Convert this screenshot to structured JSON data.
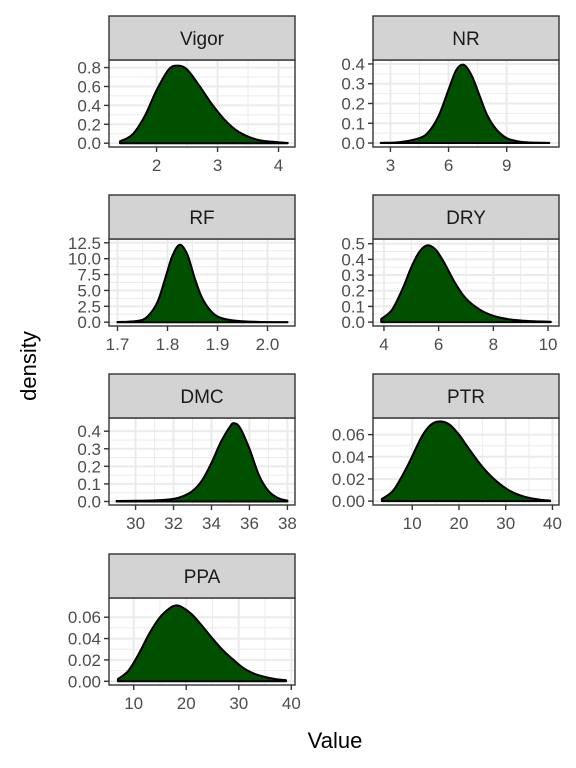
{
  "chart_data": {
    "type": "area",
    "xlabel": "Value",
    "ylabel": "density",
    "grid": true,
    "colors": {
      "fill": "#005000",
      "line": "#000000",
      "strip": "#d3d3d3",
      "panel_border": "#333333",
      "grid": "#ebebeb"
    },
    "panels": [
      {
        "name": "Vigor",
        "xlim": [
          1.22,
          4.27
        ],
        "ylim": [
          -0.04,
          0.88
        ],
        "xticks": [
          2,
          3,
          4
        ],
        "xtick_labels": [
          "2",
          "3",
          "4"
        ],
        "yticks": [
          0.0,
          0.2,
          0.4,
          0.6,
          0.8
        ],
        "ytick_labels": [
          "0.0",
          "0.2",
          "0.4",
          "0.6",
          "0.8"
        ],
        "curve": {
          "x": [
            1.4,
            1.6,
            1.8,
            2.0,
            2.2,
            2.35,
            2.5,
            2.7,
            2.9,
            3.1,
            3.3,
            3.5,
            3.7,
            3.9,
            4.1,
            4.15
          ],
          "y": [
            0.02,
            0.09,
            0.28,
            0.56,
            0.78,
            0.82,
            0.78,
            0.61,
            0.42,
            0.26,
            0.14,
            0.07,
            0.03,
            0.015,
            0.005,
            0.003
          ]
        }
      },
      {
        "name": "NR",
        "xlim": [
          2.1,
          11.7
        ],
        "ylim": [
          -0.02,
          0.42
        ],
        "xticks": [
          3,
          6,
          9
        ],
        "xtick_labels": [
          "3",
          "6",
          "9"
        ],
        "yticks": [
          0.0,
          0.1,
          0.2,
          0.3,
          0.4
        ],
        "ytick_labels": [
          "0.0",
          "0.1",
          "0.2",
          "0.3",
          "0.4"
        ],
        "curve": {
          "x": [
            2.5,
            3.5,
            4.5,
            5.0,
            5.5,
            6.0,
            6.4,
            6.8,
            7.2,
            7.6,
            8.0,
            8.5,
            9.0,
            9.5,
            10.0,
            10.5,
            11.2
          ],
          "y": [
            0.001,
            0.005,
            0.025,
            0.06,
            0.14,
            0.27,
            0.37,
            0.395,
            0.34,
            0.24,
            0.14,
            0.065,
            0.025,
            0.01,
            0.004,
            0.002,
            0.001
          ]
        }
      },
      {
        "name": "RF",
        "xlim": [
          1.683,
          2.055
        ],
        "ylim": [
          -0.6,
          13.1
        ],
        "xticks": [
          1.7,
          1.8,
          1.9,
          2.0
        ],
        "xtick_labels": [
          "1.7",
          "1.8",
          "1.9",
          "2.0"
        ],
        "yticks": [
          0.0,
          2.5,
          5.0,
          7.5,
          10.0,
          12.5
        ],
        "ytick_labels": [
          "0.0",
          "2.5",
          "5.0",
          "7.5",
          "10.0",
          "12.5"
        ],
        "curve": {
          "x": [
            1.7,
            1.74,
            1.76,
            1.78,
            1.795,
            1.81,
            1.825,
            1.84,
            1.855,
            1.87,
            1.89,
            1.91,
            1.94,
            1.98,
            2.04
          ],
          "y": [
            0.02,
            0.2,
            0.9,
            3.2,
            6.8,
            10.5,
            12.2,
            10.6,
            6.8,
            3.7,
            1.5,
            0.6,
            0.2,
            0.05,
            0.01
          ]
        }
      },
      {
        "name": "DRY",
        "xlim": [
          3.6,
          10.4
        ],
        "ylim": [
          -0.025,
          0.53
        ],
        "xticks": [
          4,
          6,
          8,
          10
        ],
        "xtick_labels": [
          "4",
          "6",
          "8",
          "10"
        ],
        "yticks": [
          0.0,
          0.1,
          0.2,
          0.3,
          0.4,
          0.5
        ],
        "ytick_labels": [
          "0.0",
          "0.1",
          "0.2",
          "0.3",
          "0.4",
          "0.5"
        ],
        "curve": {
          "x": [
            3.9,
            4.3,
            4.7,
            5.0,
            5.3,
            5.6,
            5.9,
            6.2,
            6.6,
            7.0,
            7.5,
            8.0,
            8.5,
            9.0,
            9.5,
            10.1
          ],
          "y": [
            0.02,
            0.08,
            0.22,
            0.35,
            0.45,
            0.49,
            0.46,
            0.38,
            0.25,
            0.15,
            0.08,
            0.04,
            0.02,
            0.01,
            0.005,
            0.002
          ]
        }
      },
      {
        "name": "DMC",
        "xlim": [
          28.6,
          38.4
        ],
        "ylim": [
          -0.02,
          0.475
        ],
        "xticks": [
          30,
          32,
          34,
          36,
          38
        ],
        "xtick_labels": [
          "30",
          "32",
          "34",
          "36",
          "38"
        ],
        "yticks": [
          0.0,
          0.1,
          0.2,
          0.3,
          0.4
        ],
        "ytick_labels": [
          "0.0",
          "0.1",
          "0.2",
          "0.3",
          "0.4"
        ],
        "curve": {
          "x": [
            29.0,
            30.0,
            31.0,
            32.0,
            32.5,
            33.0,
            33.5,
            34.0,
            34.5,
            35.0,
            35.2,
            35.5,
            36.0,
            36.5,
            37.0,
            37.5,
            38.0
          ],
          "y": [
            0.003,
            0.004,
            0.006,
            0.015,
            0.03,
            0.06,
            0.12,
            0.22,
            0.34,
            0.43,
            0.445,
            0.42,
            0.3,
            0.15,
            0.06,
            0.02,
            0.005
          ]
        }
      },
      {
        "name": "PTR",
        "xlim": [
          1.6,
          41.4
        ],
        "ylim": [
          -0.0035,
          0.075
        ],
        "xticks": [
          10,
          20,
          30,
          40
        ],
        "xtick_labels": [
          "10",
          "20",
          "30",
          "40"
        ],
        "yticks": [
          0.0,
          0.02,
          0.04,
          0.06
        ],
        "ytick_labels": [
          "0.00",
          "0.02",
          "0.04",
          "0.06"
        ],
        "curve": {
          "x": [
            3.5,
            6,
            9,
            12,
            14,
            16,
            18,
            20,
            22,
            25,
            28,
            31,
            34,
            37,
            39.5
          ],
          "y": [
            0.002,
            0.01,
            0.032,
            0.058,
            0.069,
            0.072,
            0.069,
            0.06,
            0.048,
            0.031,
            0.018,
            0.009,
            0.004,
            0.0015,
            0.0005
          ]
        }
      },
      {
        "name": "PPA",
        "xlim": [
          5.3,
          40.7
        ],
        "ylim": [
          -0.0035,
          0.078
        ],
        "xticks": [
          10,
          20,
          30,
          40
        ],
        "xtick_labels": [
          "10",
          "20",
          "30",
          "40"
        ],
        "yticks": [
          0.0,
          0.02,
          0.04,
          0.06
        ],
        "ytick_labels": [
          "0.00",
          "0.02",
          "0.04",
          "0.06"
        ],
        "curve": {
          "x": [
            7,
            9,
            11,
            13,
            15,
            17,
            18,
            19,
            21,
            23,
            25,
            27,
            29,
            31,
            33,
            35,
            37,
            39
          ],
          "y": [
            0.002,
            0.01,
            0.026,
            0.045,
            0.06,
            0.069,
            0.071,
            0.07,
            0.063,
            0.052,
            0.04,
            0.029,
            0.02,
            0.012,
            0.007,
            0.004,
            0.002,
            0.001
          ]
        }
      }
    ]
  }
}
